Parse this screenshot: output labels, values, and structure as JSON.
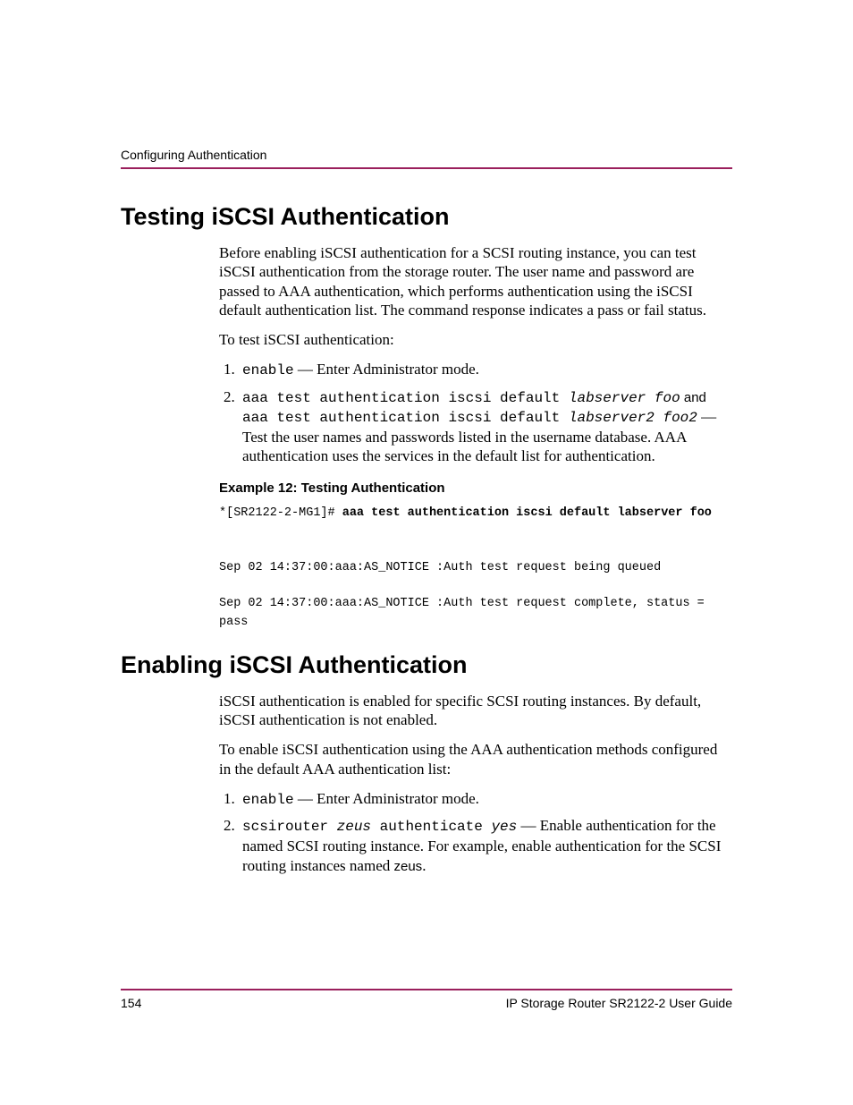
{
  "header": {
    "running_title": "Configuring Authentication"
  },
  "section_testing": {
    "heading": "Testing iSCSI Authentication",
    "intro": "Before enabling iSCSI authentication for a SCSI routing instance, you can test iSCSI authentication from the storage router. The user name and password are passed to AAA authentication, which performs authentication using the iSCSI default authentication list. The command response indicates a pass or fail status.",
    "lead_in": "To test iSCSI authentication:",
    "step1_cmd": "enable",
    "step1_desc": " — Enter Administrator mode.",
    "step2_cmd1": "aaa test authentication iscsi default ",
    "step2_cmd1_args": "labserver foo",
    "step2_join": " and ",
    "step2_cmd2": "aaa test authentication iscsi default ",
    "step2_cmd2_args": "labserver2 foo2",
    "step2_desc": "  —  Test the user names and passwords listed in the username database. AAA authentication uses the services in the default list for authentication.",
    "example_label": "Example 12:  Testing Authentication",
    "code_prefix": "*[SR2122-2-MG1]# ",
    "code_cmd": "aaa test authentication iscsi default labserver foo",
    "code_output1": "Sep 02 14:37:00:aaa:AS_NOTICE :Auth test request being queued",
    "code_output2": "Sep 02 14:37:00:aaa:AS_NOTICE :Auth test request complete, status = pass"
  },
  "section_enabling": {
    "heading": "Enabling iSCSI Authentication",
    "intro": "iSCSI authentication is enabled for specific SCSI routing instances. By default, iSCSI authentication is not enabled.",
    "lead_in": "To enable iSCSI authentication using the AAA authentication methods configured in the default AAA authentication list:",
    "step1_cmd": "enable",
    "step1_desc": " — Enter Administrator mode.",
    "step2_cmd_pre": "scsirouter ",
    "step2_cmd_arg1": "zeus",
    "step2_cmd_mid": " authenticate ",
    "step2_cmd_arg2": "yes",
    "step2_desc_pre": " — Enable authentication for the named SCSI routing instance. For example, enable authentication for the SCSI routing instances named ",
    "step2_desc_name": "zeus",
    "step2_desc_post": "."
  },
  "footer": {
    "page_number": "154",
    "doc_title": "IP Storage Router SR2122-2 User Guide"
  },
  "colors": {
    "rule": "#9a1f5c",
    "text": "#000000",
    "background": "#ffffff"
  },
  "fonts": {
    "body_pt": 17,
    "heading_pt": 27,
    "sans_pt": 14,
    "mono_pt": 16,
    "code_pt": 13.5
  }
}
